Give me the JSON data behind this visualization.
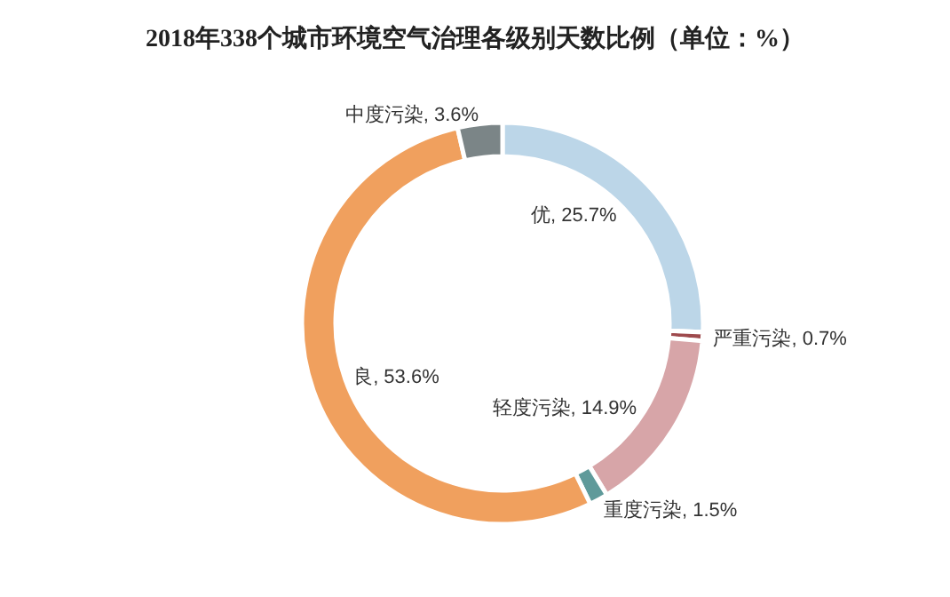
{
  "chart_data": {
    "type": "donut",
    "title": "2018年338个城市环境空气治理各级别天数比例（单位：%）",
    "categories": [
      "优",
      "严重污染",
      "轻度污染",
      "重度污染",
      "良",
      "中度污染"
    ],
    "values": [
      25.7,
      0.7,
      14.9,
      1.5,
      53.6,
      3.6
    ],
    "colors": [
      "#bcd6e8",
      "#9e4a4d",
      "#d7a5a8",
      "#5f9a9a",
      "#f0a05e",
      "#7b8587"
    ],
    "value_labels": [
      ", 25.7%",
      ", 0.7%",
      ", 14.9%",
      ", 1.5%",
      ", 53.6%",
      ", 3.6%"
    ],
    "legend": false
  }
}
